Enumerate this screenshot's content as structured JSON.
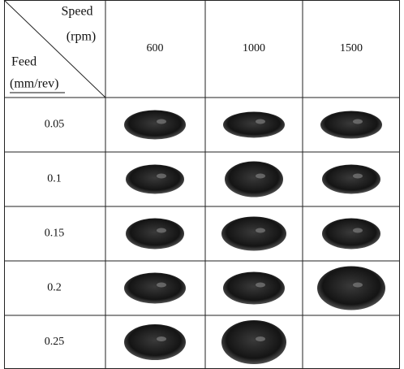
{
  "header_cell": {
    "speed_label": "Speed",
    "speed_unit": "(rpm)",
    "feed_label": "Feed",
    "feed_unit": "(mm/rev)"
  },
  "table": {
    "columns": [
      "600",
      "1000",
      "1500"
    ],
    "rows": [
      "0.05",
      "0.1",
      "0.15",
      "0.2",
      "0.25"
    ]
  }
}
